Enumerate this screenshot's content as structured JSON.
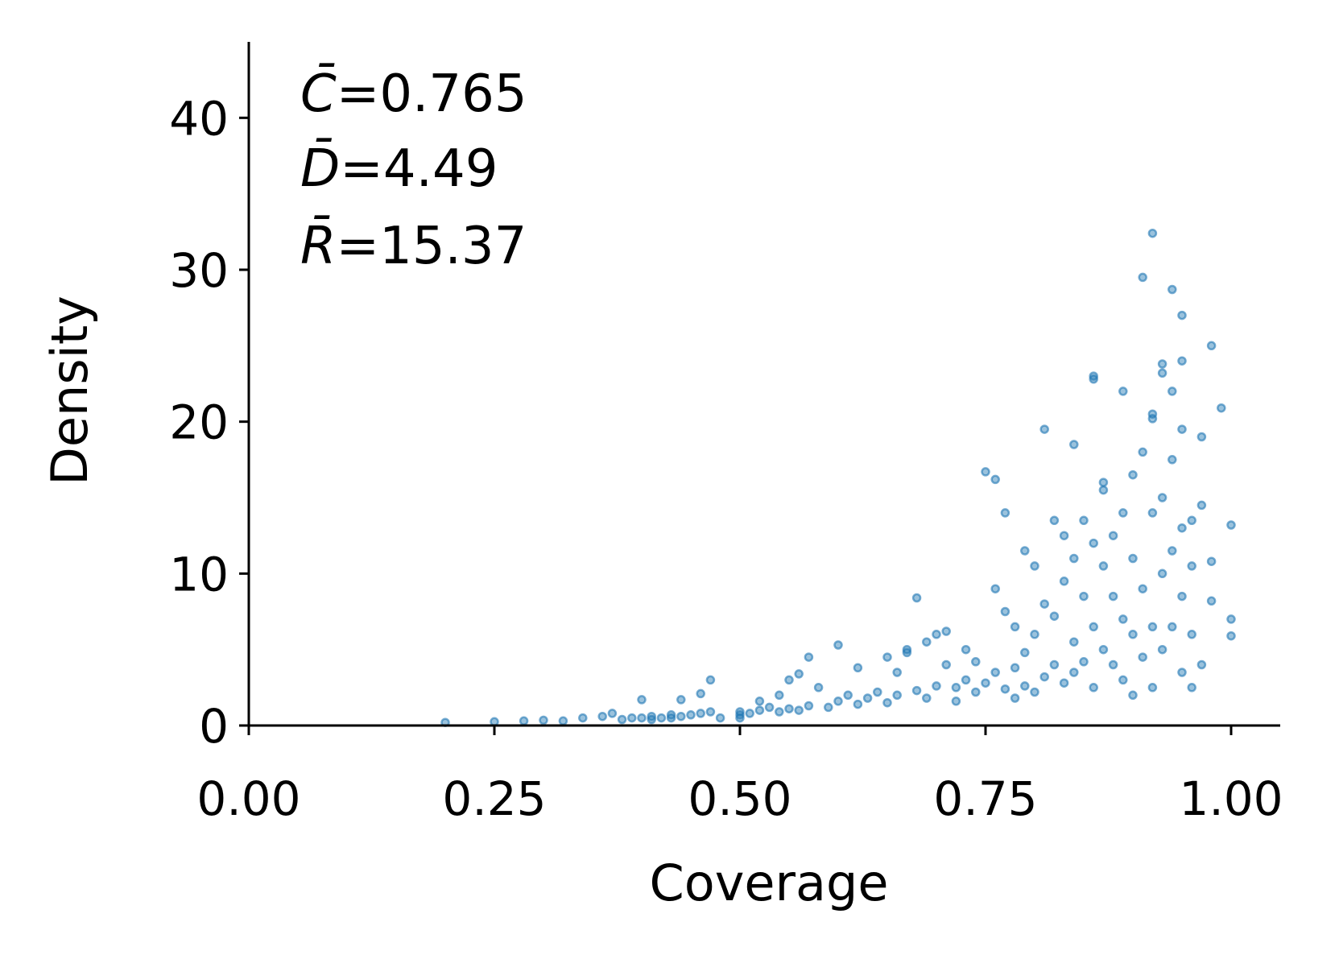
{
  "chart_data": {
    "type": "scatter",
    "xlabel": "Coverage",
    "ylabel": "Density",
    "xlim": [
      0,
      1.05
    ],
    "ylim": [
      0,
      45
    ],
    "x_ticks": [
      "0.00",
      "0.25",
      "0.50",
      "0.75",
      "1.00"
    ],
    "y_ticks": [
      "0",
      "10",
      "20",
      "30",
      "40"
    ],
    "grid": false,
    "point_color": "#1f77b4",
    "annotation": [
      {
        "symbol": "C̄",
        "text": "=0.765"
      },
      {
        "symbol": "D̄",
        "text": "=4.49"
      },
      {
        "symbol": "R̄",
        "text": "=15.37"
      }
    ],
    "points": [
      [
        0.2,
        0.2
      ],
      [
        0.25,
        0.25
      ],
      [
        0.28,
        0.3
      ],
      [
        0.3,
        0.35
      ],
      [
        0.32,
        0.3
      ],
      [
        0.34,
        0.5
      ],
      [
        0.36,
        0.6
      ],
      [
        0.37,
        0.8
      ],
      [
        0.38,
        0.4
      ],
      [
        0.39,
        0.5
      ],
      [
        0.4,
        0.5
      ],
      [
        0.4,
        1.7
      ],
      [
        0.41,
        0.6
      ],
      [
        0.41,
        0.4
      ],
      [
        0.42,
        0.5
      ],
      [
        0.43,
        0.7
      ],
      [
        0.43,
        0.5
      ],
      [
        0.44,
        0.6
      ],
      [
        0.44,
        1.7
      ],
      [
        0.45,
        0.7
      ],
      [
        0.46,
        0.8
      ],
      [
        0.46,
        2.1
      ],
      [
        0.47,
        0.9
      ],
      [
        0.47,
        3.0
      ],
      [
        0.48,
        0.5
      ],
      [
        0.5,
        0.5
      ],
      [
        0.5,
        0.9
      ],
      [
        0.5,
        0.7
      ],
      [
        0.51,
        0.8
      ],
      [
        0.52,
        1.0
      ],
      [
        0.52,
        1.6
      ],
      [
        0.53,
        1.2
      ],
      [
        0.54,
        2.0
      ],
      [
        0.54,
        0.9
      ],
      [
        0.55,
        3.0
      ],
      [
        0.55,
        1.1
      ],
      [
        0.56,
        3.4
      ],
      [
        0.56,
        1.0
      ],
      [
        0.57,
        4.5
      ],
      [
        0.57,
        1.3
      ],
      [
        0.58,
        2.5
      ],
      [
        0.59,
        1.2
      ],
      [
        0.6,
        5.3
      ],
      [
        0.6,
        1.6
      ],
      [
        0.61,
        2.0
      ],
      [
        0.62,
        1.4
      ],
      [
        0.62,
        3.8
      ],
      [
        0.63,
        1.8
      ],
      [
        0.64,
        2.2
      ],
      [
        0.65,
        4.5
      ],
      [
        0.65,
        1.5
      ],
      [
        0.66,
        3.5
      ],
      [
        0.66,
        2.0
      ],
      [
        0.67,
        5.0
      ],
      [
        0.67,
        4.8
      ],
      [
        0.68,
        8.4
      ],
      [
        0.68,
        2.3
      ],
      [
        0.69,
        5.5
      ],
      [
        0.69,
        1.8
      ],
      [
        0.7,
        6.0
      ],
      [
        0.7,
        2.6
      ],
      [
        0.71,
        4.0
      ],
      [
        0.71,
        6.2
      ],
      [
        0.72,
        2.5
      ],
      [
        0.72,
        1.6
      ],
      [
        0.73,
        5.0
      ],
      [
        0.73,
        3.0
      ],
      [
        0.74,
        4.2
      ],
      [
        0.74,
        2.2
      ],
      [
        0.75,
        16.7
      ],
      [
        0.75,
        2.8
      ],
      [
        0.76,
        16.2
      ],
      [
        0.76,
        9.0
      ],
      [
        0.76,
        3.5
      ],
      [
        0.77,
        14.0
      ],
      [
        0.77,
        7.5
      ],
      [
        0.77,
        2.4
      ],
      [
        0.78,
        6.5
      ],
      [
        0.78,
        3.8
      ],
      [
        0.78,
        1.8
      ],
      [
        0.79,
        11.5
      ],
      [
        0.79,
        4.8
      ],
      [
        0.79,
        2.6
      ],
      [
        0.8,
        10.5
      ],
      [
        0.8,
        6.0
      ],
      [
        0.8,
        2.2
      ],
      [
        0.81,
        19.5
      ],
      [
        0.81,
        8.0
      ],
      [
        0.81,
        3.2
      ],
      [
        0.82,
        13.5
      ],
      [
        0.82,
        7.2
      ],
      [
        0.82,
        4.0
      ],
      [
        0.83,
        12.5
      ],
      [
        0.83,
        9.5
      ],
      [
        0.83,
        2.8
      ],
      [
        0.84,
        18.5
      ],
      [
        0.84,
        11.0
      ],
      [
        0.84,
        5.5
      ],
      [
        0.84,
        3.5
      ],
      [
        0.85,
        13.5
      ],
      [
        0.85,
        8.5
      ],
      [
        0.85,
        4.2
      ],
      [
        0.86,
        23.0
      ],
      [
        0.86,
        22.8
      ],
      [
        0.86,
        12.0
      ],
      [
        0.86,
        6.5
      ],
      [
        0.86,
        2.5
      ],
      [
        0.87,
        16.0
      ],
      [
        0.87,
        15.5
      ],
      [
        0.87,
        10.5
      ],
      [
        0.87,
        5.0
      ],
      [
        0.88,
        12.5
      ],
      [
        0.88,
        8.5
      ],
      [
        0.88,
        4.0
      ],
      [
        0.89,
        22.0
      ],
      [
        0.89,
        14.0
      ],
      [
        0.89,
        7.0
      ],
      [
        0.89,
        3.0
      ],
      [
        0.9,
        16.5
      ],
      [
        0.9,
        11.0
      ],
      [
        0.9,
        6.0
      ],
      [
        0.9,
        2.0
      ],
      [
        0.91,
        29.5
      ],
      [
        0.91,
        18.0
      ],
      [
        0.91,
        9.0
      ],
      [
        0.91,
        4.5
      ],
      [
        0.92,
        32.4
      ],
      [
        0.92,
        20.5
      ],
      [
        0.92,
        20.2
      ],
      [
        0.92,
        14.0
      ],
      [
        0.92,
        6.5
      ],
      [
        0.92,
        2.5
      ],
      [
        0.93,
        23.8
      ],
      [
        0.93,
        23.2
      ],
      [
        0.93,
        15.0
      ],
      [
        0.93,
        10.0
      ],
      [
        0.93,
        5.0
      ],
      [
        0.94,
        28.7
      ],
      [
        0.94,
        22.0
      ],
      [
        0.94,
        17.5
      ],
      [
        0.94,
        11.5
      ],
      [
        0.94,
        6.5
      ],
      [
        0.95,
        27.0
      ],
      [
        0.95,
        24.0
      ],
      [
        0.95,
        19.5
      ],
      [
        0.95,
        13.0
      ],
      [
        0.95,
        8.5
      ],
      [
        0.95,
        3.5
      ],
      [
        0.96,
        10.5
      ],
      [
        0.96,
        13.5
      ],
      [
        0.96,
        6.0
      ],
      [
        0.96,
        2.5
      ],
      [
        0.97,
        19.0
      ],
      [
        0.97,
        14.5
      ],
      [
        0.97,
        4.0
      ],
      [
        0.98,
        25.0
      ],
      [
        0.98,
        10.8
      ],
      [
        0.98,
        8.2
      ],
      [
        0.99,
        20.9
      ],
      [
        1.0,
        13.2
      ],
      [
        1.0,
        7.0
      ],
      [
        1.0,
        5.9
      ]
    ]
  }
}
